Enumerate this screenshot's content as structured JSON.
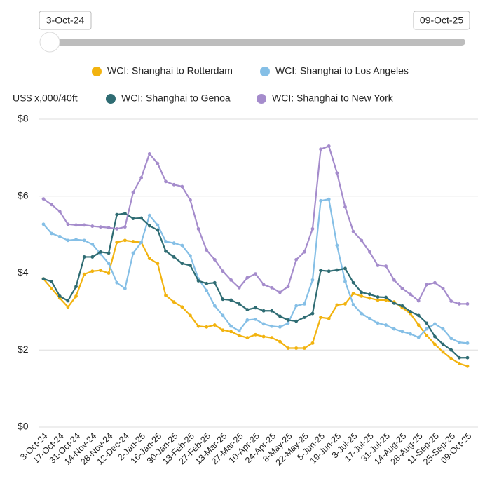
{
  "slider": {
    "start": "3-Oct-24",
    "end": "09-Oct-25"
  },
  "chart_data": {
    "type": "line",
    "y_label": "US$ x,000/40ft",
    "categories": [
      "3-Oct-24",
      null,
      "17-Oct-24",
      null,
      "31-Oct-24",
      null,
      "14-Nov-24",
      null,
      "28-Nov-24",
      null,
      "12-Dec-24",
      null,
      "2-Jan-25",
      null,
      "16-Jan-25",
      null,
      "30-Jan-25",
      null,
      "13-Feb-25",
      null,
      "27-Feb-25",
      null,
      "13-Mar-25",
      null,
      "27-Mar-25",
      null,
      "10-Apr-25",
      null,
      "24-Apr-25",
      null,
      "8-May-25",
      null,
      "22-May-25",
      null,
      "5-Jun-25",
      null,
      "19-Jun-25",
      null,
      "3-Jul-25",
      null,
      "17-Jul-25",
      null,
      "31-Jul-25",
      null,
      "14-Aug-25",
      null,
      "28-Aug-25",
      null,
      "11-Sep-25",
      null,
      "25-Sep-25",
      null,
      "09-Oct-25"
    ],
    "series": [
      {
        "name": "WCI: Shanghai to Rotterdam",
        "color": "#f2b30f",
        "values": [
          3.85,
          3.6,
          3.35,
          3.12,
          3.4,
          3.97,
          4.05,
          4.07,
          4.0,
          4.8,
          4.85,
          4.82,
          4.8,
          4.38,
          4.25,
          3.42,
          3.25,
          3.12,
          2.9,
          2.62,
          2.6,
          2.65,
          2.52,
          2.48,
          2.38,
          2.32,
          2.4,
          2.35,
          2.32,
          2.22,
          2.05,
          2.05,
          2.05,
          2.18,
          2.85,
          2.82,
          3.17,
          3.2,
          3.47,
          3.4,
          3.35,
          3.3,
          3.3,
          3.25,
          3.1,
          2.95,
          2.65,
          2.38,
          2.15,
          1.95,
          1.78,
          1.65,
          1.58
        ]
      },
      {
        "name": "WCI: Shanghai to Los Angeles",
        "color": "#85bfe6",
        "values": [
          5.27,
          5.03,
          4.95,
          4.85,
          4.87,
          4.85,
          4.75,
          4.5,
          4.25,
          3.75,
          3.6,
          4.52,
          4.8,
          5.5,
          5.25,
          4.82,
          4.78,
          4.72,
          4.45,
          3.85,
          3.55,
          3.15,
          2.9,
          2.62,
          2.5,
          2.78,
          2.8,
          2.68,
          2.62,
          2.6,
          2.7,
          3.15,
          3.2,
          3.82,
          5.88,
          5.92,
          4.72,
          3.78,
          3.18,
          2.95,
          2.82,
          2.7,
          2.65,
          2.55,
          2.48,
          2.42,
          2.33,
          2.55,
          2.68,
          2.55,
          2.3,
          2.2,
          2.18
        ]
      },
      {
        "name": "WCI: Shanghai to Genoa",
        "color": "#2f6c73",
        "values": [
          3.85,
          3.78,
          3.4,
          3.28,
          3.65,
          4.42,
          4.42,
          4.55,
          4.52,
          5.52,
          5.55,
          5.42,
          5.43,
          5.23,
          5.12,
          4.57,
          4.42,
          4.25,
          4.2,
          3.8,
          3.73,
          3.75,
          3.32,
          3.3,
          3.2,
          3.05,
          3.1,
          3.02,
          3.02,
          2.88,
          2.78,
          2.75,
          2.85,
          2.95,
          4.07,
          4.05,
          4.08,
          4.12,
          3.75,
          3.5,
          3.45,
          3.38,
          3.37,
          3.22,
          3.15,
          3.0,
          2.9,
          2.7,
          2.35,
          2.15,
          2.0,
          1.8,
          1.8
        ]
      },
      {
        "name": "WCI: Shanghai to New York",
        "color": "#a58ccc",
        "values": [
          5.93,
          5.78,
          5.6,
          5.27,
          5.25,
          5.25,
          5.22,
          5.2,
          5.18,
          5.15,
          5.2,
          6.1,
          6.48,
          7.1,
          6.85,
          6.38,
          6.3,
          6.25,
          5.9,
          5.15,
          4.6,
          4.35,
          4.05,
          3.82,
          3.62,
          3.88,
          3.98,
          3.7,
          3.62,
          3.5,
          3.65,
          4.35,
          4.55,
          5.15,
          7.22,
          7.3,
          6.6,
          5.72,
          5.08,
          4.85,
          4.55,
          4.2,
          4.18,
          3.82,
          3.6,
          3.45,
          3.28,
          3.7,
          3.75,
          3.6,
          3.27,
          3.2,
          3.2
        ]
      }
    ],
    "ylim": [
      0,
      8
    ],
    "yticks": [
      {
        "value": 0,
        "label": "$0"
      },
      {
        "value": 2,
        "label": "$2"
      },
      {
        "value": 4,
        "label": "$4"
      },
      {
        "value": 6,
        "label": "$6"
      },
      {
        "value": 8,
        "label": "$8"
      }
    ],
    "grid": true
  }
}
